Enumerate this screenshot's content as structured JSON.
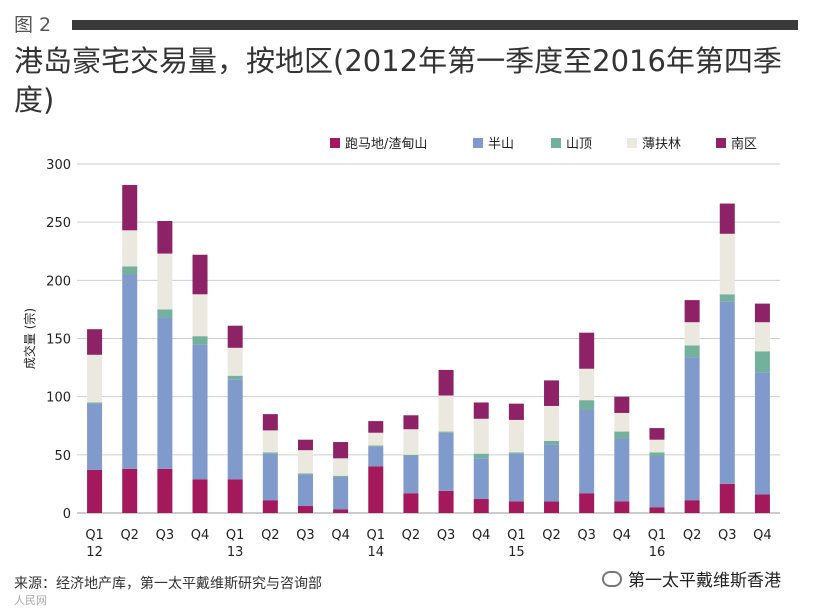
{
  "figure": {
    "label": "图 2"
  },
  "title": "港岛豪宅交易量，按地区(2012年第一季度至2016年第四季度)",
  "source": "来源：经济地产库，第一太平戴维斯研究与咨询部",
  "watermark_left": "人民网",
  "brand": "第一太平戴维斯香港",
  "chart_data": {
    "type": "bar",
    "stacked": true,
    "title": "",
    "xlabel": "",
    "ylabel": "成交量 (宗)",
    "ylim": [
      0,
      300
    ],
    "yticks": [
      0,
      50,
      100,
      150,
      200,
      250,
      300
    ],
    "grid": true,
    "legend_position": "top",
    "categories": [
      "Q1 2012",
      "Q2 2012",
      "Q3 2012",
      "Q4 2012",
      "Q1 2013",
      "Q2 2013",
      "Q3 2013",
      "Q4 2013",
      "Q1 2014",
      "Q2 2014",
      "Q3 2014",
      "Q4 2014",
      "Q1 2015",
      "Q2 2015",
      "Q3 2015",
      "Q4 2015",
      "Q1 2016",
      "Q2 2016",
      "Q3 2016",
      "Q4 2016"
    ],
    "tick_labels": [
      {
        "top": "Q1",
        "bottom": "12"
      },
      {
        "top": "Q2",
        "bottom": ""
      },
      {
        "top": "Q3",
        "bottom": ""
      },
      {
        "top": "Q4",
        "bottom": ""
      },
      {
        "top": "Q1",
        "bottom": "13"
      },
      {
        "top": "Q2",
        "bottom": ""
      },
      {
        "top": "Q3",
        "bottom": ""
      },
      {
        "top": "Q4",
        "bottom": ""
      },
      {
        "top": "Q1",
        "bottom": "14"
      },
      {
        "top": "Q2",
        "bottom": ""
      },
      {
        "top": "Q3",
        "bottom": ""
      },
      {
        "top": "Q4",
        "bottom": ""
      },
      {
        "top": "Q1",
        "bottom": "15"
      },
      {
        "top": "Q2",
        "bottom": ""
      },
      {
        "top": "Q3",
        "bottom": ""
      },
      {
        "top": "Q4",
        "bottom": ""
      },
      {
        "top": "Q1",
        "bottom": "16"
      },
      {
        "top": "Q2",
        "bottom": ""
      },
      {
        "top": "Q3",
        "bottom": ""
      },
      {
        "top": "Q4",
        "bottom": ""
      }
    ],
    "series": [
      {
        "name": "跑马地/渣甸山",
        "color": "#a3195b",
        "values": [
          37,
          38,
          38,
          29,
          29,
          11,
          6,
          3,
          40,
          17,
          19,
          12,
          10,
          10,
          17,
          10,
          5,
          11,
          25,
          16
        ]
      },
      {
        "name": "半山",
        "color": "#7f9acb",
        "values": [
          57,
          167,
          130,
          116,
          86,
          40,
          27,
          28,
          17,
          32,
          50,
          35,
          41,
          49,
          72,
          54,
          44,
          123,
          157,
          105
        ]
      },
      {
        "name": "山顶",
        "color": "#74b19c",
        "values": [
          1,
          7,
          7,
          7,
          3,
          1,
          1,
          1,
          1,
          1,
          1,
          4,
          1,
          3,
          8,
          6,
          3,
          10,
          6,
          18
        ]
      },
      {
        "name": "薄扶林",
        "color": "#eae8df",
        "values": [
          41,
          31,
          48,
          36,
          24,
          19,
          20,
          15,
          11,
          22,
          31,
          30,
          28,
          30,
          27,
          16,
          11,
          20,
          52,
          25
        ]
      },
      {
        "name": "南区",
        "color": "#8e2266",
        "values": [
          22,
          39,
          28,
          34,
          19,
          14,
          9,
          14,
          10,
          12,
          22,
          14,
          14,
          22,
          31,
          14,
          10,
          19,
          26,
          16
        ]
      }
    ]
  }
}
